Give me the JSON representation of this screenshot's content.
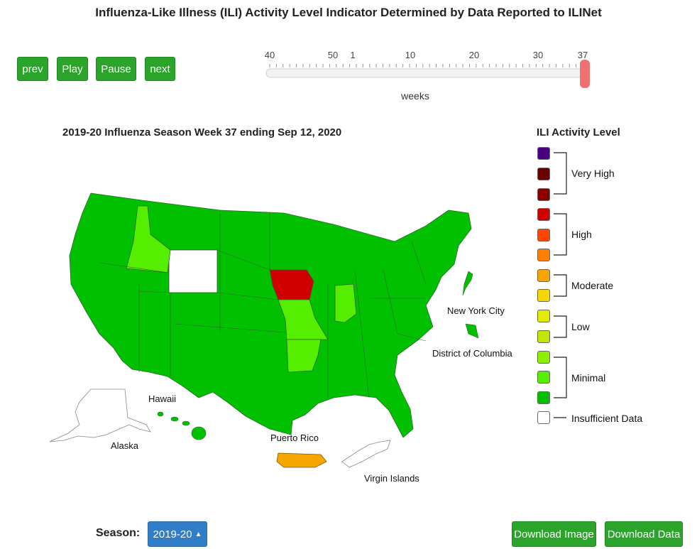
{
  "title": "Influenza-Like Illness (ILI) Activity Level Indicator Determined by Data Reported to ILINet",
  "controls": {
    "prev": "prev",
    "play": "Play",
    "pause": "Pause",
    "next": "next"
  },
  "slider": {
    "ticks": [
      "40",
      "50",
      "1",
      "10",
      "20",
      "30",
      "37"
    ],
    "label": "weeks",
    "selected_week": "37",
    "handle_color": "#f07070"
  },
  "map_title": "2019-20 Influenza Season Week 37 ending Sep 12, 2020",
  "legend": {
    "title": "ILI Activity Level",
    "groups": [
      {
        "label": "Very High",
        "colors": [
          "#4b0082",
          "#6b0000",
          "#8b0000"
        ]
      },
      {
        "label": "High",
        "colors": [
          "#d00000",
          "#ff4500",
          "#ff8000"
        ]
      },
      {
        "label": "Moderate",
        "colors": [
          "#f7a600",
          "#f5d800"
        ]
      },
      {
        "label": "Low",
        "colors": [
          "#e0ec00",
          "#c3e600"
        ]
      },
      {
        "label": "Minimal",
        "colors": [
          "#90ee00",
          "#55ee00",
          "#00c000"
        ]
      },
      {
        "label": "Insufficient Data",
        "colors": [
          "#ffffff"
        ]
      }
    ]
  },
  "region_labels": {
    "nyc": "New York City",
    "dc": "District of Columbia",
    "hawaii": "Hawaii",
    "alaska": "Alaska",
    "puerto_rico": "Puerto Rico",
    "virgin_islands": "Virgin Islands"
  },
  "colors": {
    "minimal_dark": "#00c000",
    "minimal_light": "#55ee00",
    "high": "#d00000",
    "moderate": "#f7a600",
    "insufficient": "#ffffff",
    "button_green": "#2aa52a",
    "select_blue": "#2f7ec7"
  },
  "state_levels": {
    "Iowa": "High",
    "Idaho": "Minimal (level 2)",
    "Indiana": "Minimal (level 2)",
    "Missouri": "Minimal (level 2)",
    "Arkansas": "Minimal (level 2)",
    "Wyoming": "Insufficient Data",
    "Puerto Rico": "Moderate",
    "Virgin Islands": "Insufficient Data"
  },
  "footer": {
    "season_label": "Season:",
    "season_value": "2019-20",
    "download_image": "Download Image",
    "download_data": "Download Data"
  }
}
